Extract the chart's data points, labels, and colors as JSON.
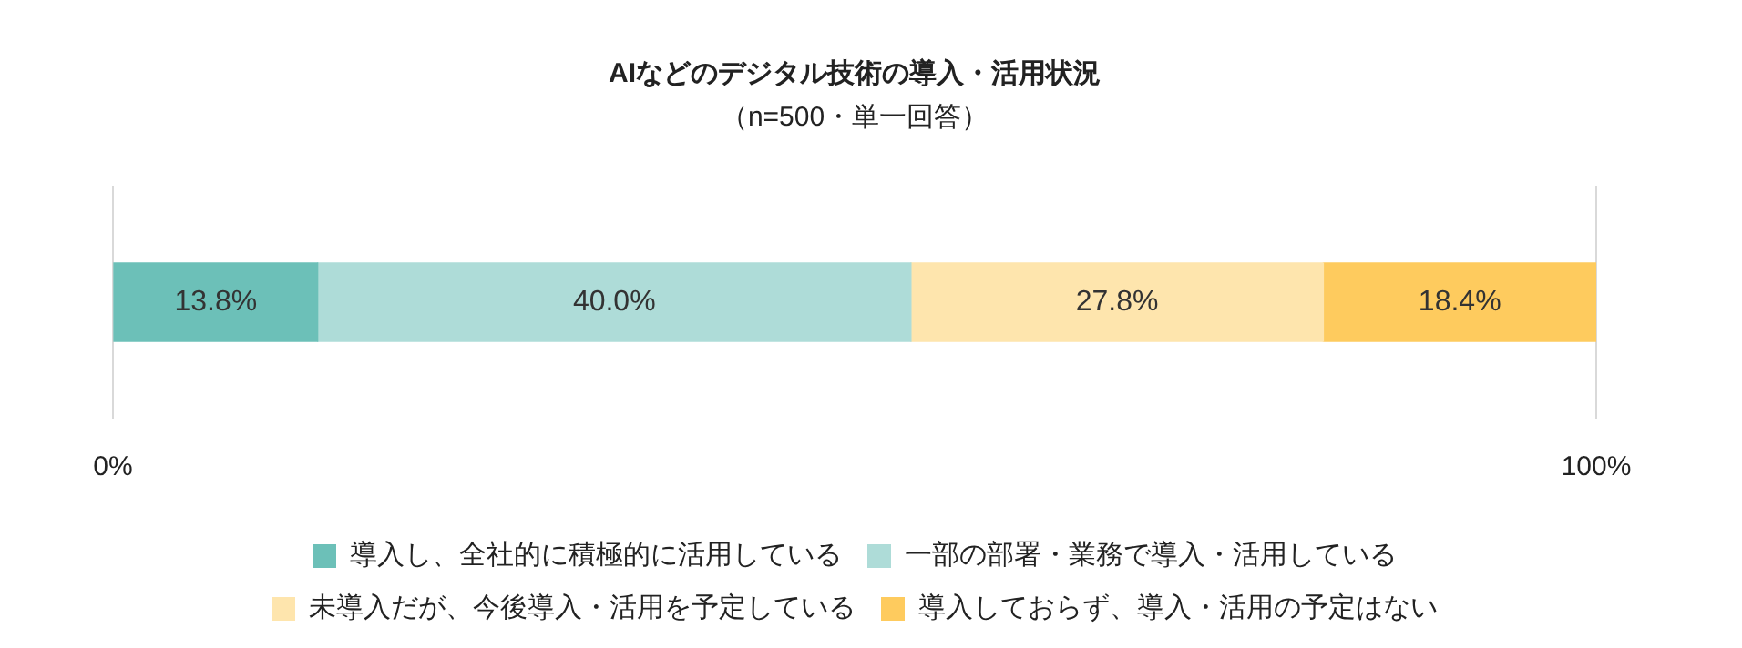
{
  "chart_data": {
    "type": "bar",
    "title": "AIなどのデジタル技術の導入・活用状況",
    "subtitle": "（n=500・単一回答）",
    "categories": [
      null
    ],
    "orientation": "horizontal",
    "stacked": true,
    "series": [
      {
        "name": "導入し、全社的に積極的に活用している",
        "color": "#6cc0b8",
        "values": [
          13.8
        ],
        "value_labels": [
          "13.8%"
        ]
      },
      {
        "name": "一部の部署・業務で導入・活用している",
        "color": "#aedcd8",
        "values": [
          40.0
        ],
        "value_labels": [
          "40.0%"
        ]
      },
      {
        "name": "未導入だが、今後導入・活用を予定している",
        "color": "#fee5ad",
        "values": [
          27.8
        ],
        "value_labels": [
          "27.8%"
        ]
      },
      {
        "name": "導入しておらず、導入・活用の予定はない",
        "color": "#fecb5e",
        "values": [
          18.4
        ],
        "value_labels": [
          "18.4%"
        ]
      }
    ],
    "xlim": [
      0,
      100
    ],
    "xticks": [
      {
        "value": 0,
        "label": "0%"
      },
      {
        "value": 100,
        "label": "100%"
      }
    ],
    "grid": "x",
    "legend": "bottom"
  }
}
